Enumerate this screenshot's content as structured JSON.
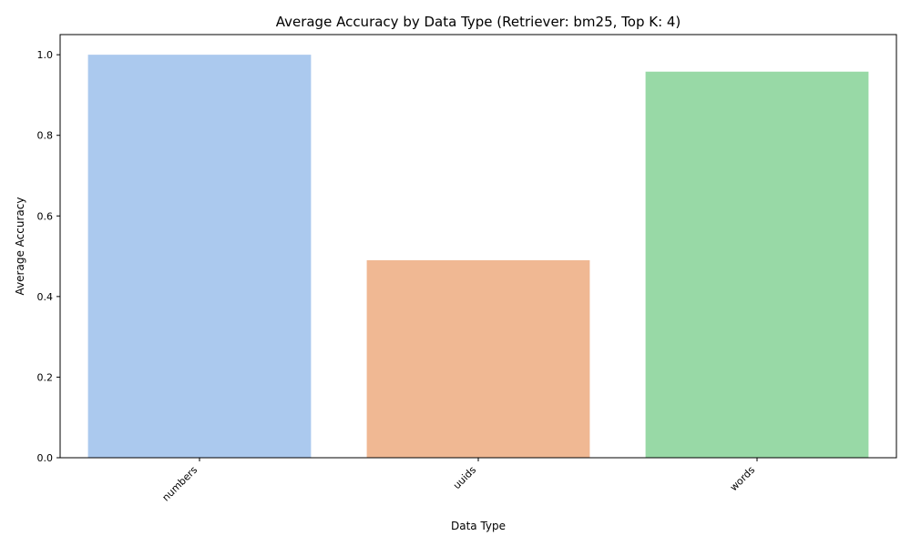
{
  "chart_data": {
    "type": "bar",
    "title": "Average Accuracy by Data Type (Retriever: bm25, Top K: 4)",
    "xlabel": "Data Type",
    "ylabel": "Average Accuracy",
    "categories": [
      "numbers",
      "uuids",
      "words"
    ],
    "values": [
      1.0,
      0.49,
      0.958
    ],
    "colors": [
      "#abc9ee",
      "#f0b893",
      "#98d9a6"
    ],
    "ylim": [
      0,
      1.05
    ],
    "yticks": [
      "0.0",
      "0.2",
      "0.4",
      "0.6",
      "0.8",
      "1.0"
    ],
    "grid": false,
    "legend": "none"
  }
}
